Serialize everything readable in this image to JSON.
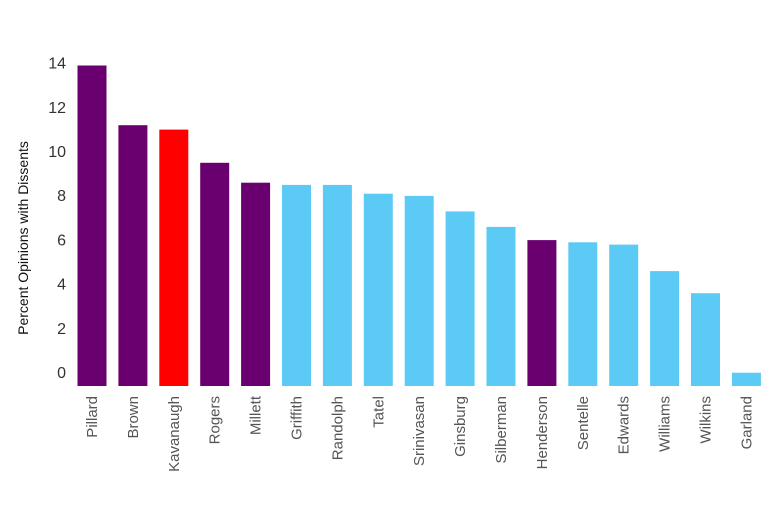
{
  "chart_data": {
    "type": "bar",
    "title": "",
    "xlabel": "",
    "ylabel": "Percent Opinions with Dissents",
    "ylim": [
      0,
      15
    ],
    "yticks": [
      0,
      2,
      4,
      6,
      8,
      10,
      12,
      14
    ],
    "grid": false,
    "legend": "none",
    "categories": [
      "Pillard",
      "Brown",
      "Kavanaugh",
      "Rogers",
      "Millett",
      "Griffith",
      "Randolph",
      "Tatel",
      "Srinivasan",
      "Ginsburg",
      "Silberman",
      "Henderson",
      "Sentelle",
      "Edwards",
      "Williams",
      "Wilkins",
      "Garland"
    ],
    "values": [
      14.5,
      11.8,
      11.6,
      10.1,
      9.2,
      9.1,
      9.1,
      8.7,
      8.6,
      7.9,
      7.2,
      6.6,
      6.5,
      6.4,
      5.2,
      4.2,
      0.6
    ],
    "bar_colors": [
      "#6a006f",
      "#6a006f",
      "#ff0000",
      "#6a006f",
      "#6a006f",
      "#5bcbf5",
      "#5bcbf5",
      "#5bcbf5",
      "#5bcbf5",
      "#5bcbf5",
      "#5bcbf5",
      "#6a006f",
      "#5bcbf5",
      "#5bcbf5",
      "#5bcbf5",
      "#5bcbf5",
      "#5bcbf5"
    ]
  }
}
